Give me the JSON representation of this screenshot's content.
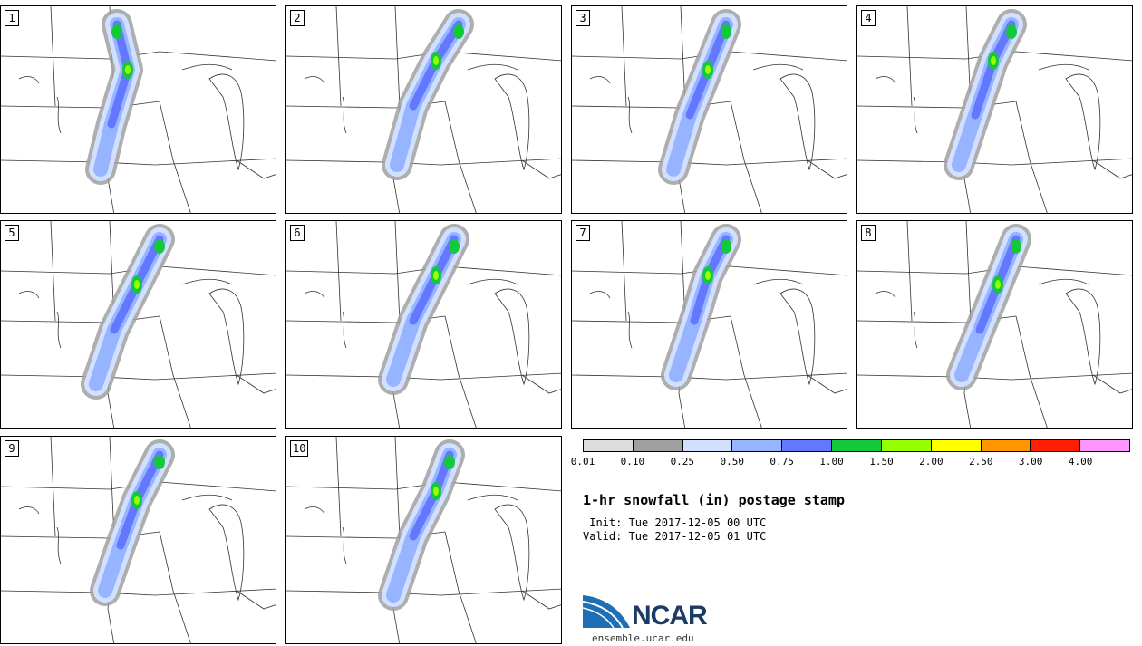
{
  "panels": [
    {
      "label": "1"
    },
    {
      "label": "2"
    },
    {
      "label": "3"
    },
    {
      "label": "4"
    },
    {
      "label": "5"
    },
    {
      "label": "6"
    },
    {
      "label": "7"
    },
    {
      "label": "8"
    },
    {
      "label": "9"
    },
    {
      "label": "10"
    }
  ],
  "legend": {
    "thresholds": [
      "0.01",
      "0.10",
      "0.25",
      "0.50",
      "0.75",
      "1.00",
      "1.50",
      "2.00",
      "2.50",
      "3.00",
      "4.00"
    ],
    "colors": [
      "#dcdcdc",
      "#a0a0a0",
      "#d2e0ff",
      "#96b4ff",
      "#6478ff",
      "#14c83c",
      "#96ff00",
      "#ffff00",
      "#ff9600",
      "#ff1e00",
      "#ff96ff"
    ]
  },
  "title": "1-hr snowfall (in) postage stamp",
  "init_line": " Init: Tue 2017-12-05 00 UTC",
  "valid_line": "Valid: Tue 2017-12-05 01 UTC",
  "logo": {
    "text": "NCAR",
    "url": "ensemble.ucar.edu",
    "color": "#1b3a64",
    "accent": "#1e6fb4"
  }
}
